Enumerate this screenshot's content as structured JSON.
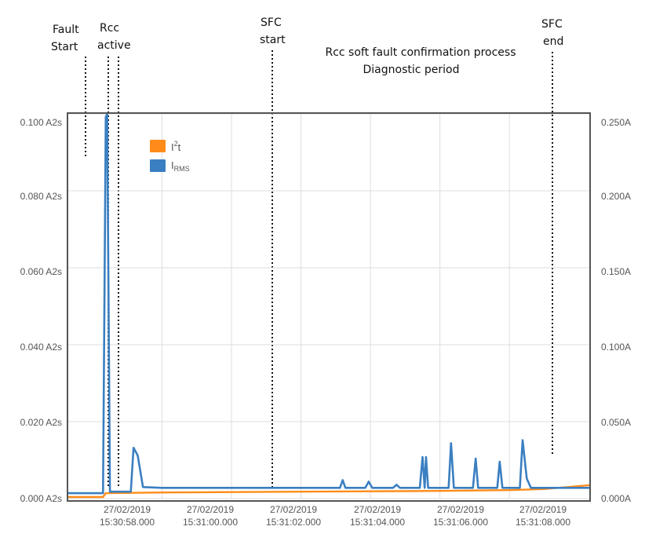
{
  "chart_data": {
    "type": "line",
    "title": "",
    "xlabel": "",
    "ylabel_left": "",
    "ylabel_right": "",
    "x_unit": "s",
    "xlim": [
      55.3,
      70.3
    ],
    "x_ticks": [
      {
        "x": 58,
        "date": "27/02/2019",
        "time": "15:30:58.000"
      },
      {
        "x": 60,
        "date": "27/02/2019",
        "time": "15:31:00.000"
      },
      {
        "x": 62,
        "date": "27/02/2019",
        "time": "15:31:02.000"
      },
      {
        "x": 64,
        "date": "27/02/2019",
        "time": "15:31:04.000"
      },
      {
        "x": 66,
        "date": "27/02/2019",
        "time": "15:31:06.000"
      },
      {
        "x": 68,
        "date": "27/02/2019",
        "time": "15:31:08.000"
      }
    ],
    "y_left": {
      "lim": [
        0,
        0.1
      ],
      "unit": "A2s",
      "ticks": [
        "0.000 A2s",
        "0.020 A2s",
        "0.040 A2s",
        "0.060 A2s",
        "0.080 A2s",
        "0.100 A2s"
      ],
      "tick_values": [
        0,
        0.02,
        0.04,
        0.06,
        0.08,
        0.1
      ]
    },
    "y_right": {
      "lim": [
        0,
        0.25
      ],
      "unit": "A",
      "ticks": [
        "0.000A",
        "0.050A",
        "0.100A",
        "0.150A",
        "0.200A",
        "0.250A"
      ],
      "tick_values": [
        0,
        0.05,
        0.1,
        0.15,
        0.2,
        0.25
      ]
    },
    "grid": true,
    "legend": {
      "placement": "top-left",
      "entries": [
        {
          "label": "I",
          "sup": "2",
          "suffix": "t",
          "color": "#ff8c1a"
        },
        {
          "label": "I",
          "sub": "RMS",
          "color": "#3a7fc1"
        }
      ]
    },
    "series": [
      {
        "name": "I²t",
        "axis": "left",
        "color": "#ff8c1a",
        "points": [
          [
            55.3,
            0.0004
          ],
          [
            56.3,
            0.0004
          ],
          [
            56.38,
            0.0014
          ],
          [
            58.0,
            0.0016
          ],
          [
            60.0,
            0.0017
          ],
          [
            62.0,
            0.0018
          ],
          [
            64.0,
            0.0019
          ],
          [
            66.0,
            0.002
          ],
          [
            68.0,
            0.0022
          ],
          [
            69.0,
            0.0025
          ],
          [
            70.3,
            0.0035
          ]
        ]
      },
      {
        "name": "IRMS",
        "axis": "right",
        "color": "#3a7fc1",
        "points": [
          [
            55.3,
            0.0035
          ],
          [
            56.3,
            0.0035
          ],
          [
            56.38,
            0.248
          ],
          [
            56.42,
            0.25
          ],
          [
            56.5,
            0.0045
          ],
          [
            57.1,
            0.0045
          ],
          [
            57.18,
            0.033
          ],
          [
            57.3,
            0.028
          ],
          [
            57.45,
            0.0075
          ],
          [
            58.0,
            0.007
          ],
          [
            60.0,
            0.007
          ],
          [
            62.0,
            0.007
          ],
          [
            63.0,
            0.007
          ],
          [
            63.12,
            0.007
          ],
          [
            63.2,
            0.012
          ],
          [
            63.28,
            0.007
          ],
          [
            63.85,
            0.007
          ],
          [
            63.95,
            0.011
          ],
          [
            64.05,
            0.007
          ],
          [
            64.65,
            0.007
          ],
          [
            64.75,
            0.009
          ],
          [
            64.85,
            0.007
          ],
          [
            65.42,
            0.007
          ],
          [
            65.5,
            0.027
          ],
          [
            65.56,
            0.007
          ],
          [
            65.6,
            0.027
          ],
          [
            65.66,
            0.007
          ],
          [
            66.25,
            0.007
          ],
          [
            66.32,
            0.036
          ],
          [
            66.4,
            0.007
          ],
          [
            66.95,
            0.007
          ],
          [
            67.03,
            0.026
          ],
          [
            67.1,
            0.007
          ],
          [
            67.65,
            0.007
          ],
          [
            67.72,
            0.024
          ],
          [
            67.8,
            0.007
          ],
          [
            68.3,
            0.007
          ],
          [
            68.38,
            0.038
          ],
          [
            68.5,
            0.013
          ],
          [
            68.62,
            0.007
          ],
          [
            69.5,
            0.007
          ],
          [
            70.3,
            0.007
          ]
        ]
      }
    ],
    "annotations": [
      {
        "lines": [
          "Fault",
          "Start"
        ],
        "x": 56.38
      },
      {
        "lines": [
          "Rcc",
          "active"
        ],
        "x": 57.1,
        "x2": 57.4
      },
      {
        "lines": [
          "SFC",
          "start"
        ],
        "x": 62.0
      },
      {
        "lines": [
          "Rcc soft fault confirmation process",
          "Diagnostic period"
        ],
        "x": null
      },
      {
        "lines": [
          "SFC",
          "end"
        ],
        "x": 68.3
      }
    ]
  }
}
